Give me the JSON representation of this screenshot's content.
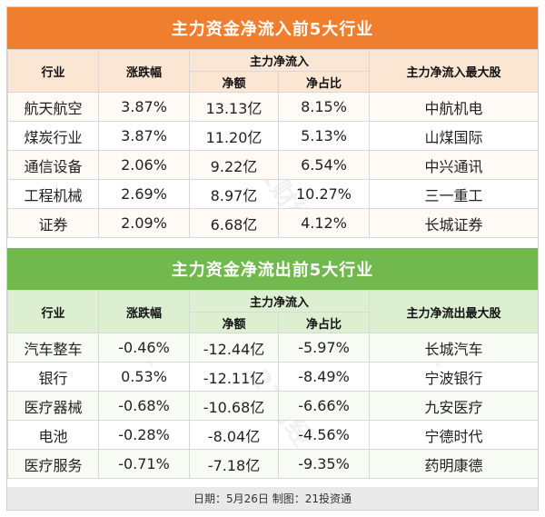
{
  "inflow": {
    "title": "主力资金净流入前5大行业",
    "headers": {
      "industry": "行业",
      "change": "涨跌幅",
      "net_group": "主力净流入",
      "net_amount": "净额",
      "net_ratio": "净占比",
      "top_stock": "主力净流入最大股"
    },
    "rows": [
      {
        "industry": "航天航空",
        "change": "3.87%",
        "amount": "13.13亿",
        "ratio": "8.15%",
        "stock": "中航机电"
      },
      {
        "industry": "煤炭行业",
        "change": "3.87%",
        "amount": "11.20亿",
        "ratio": "5.13%",
        "stock": "山煤国际"
      },
      {
        "industry": "通信设备",
        "change": "2.06%",
        "amount": "9.22亿",
        "ratio": "6.54%",
        "stock": "中兴通讯"
      },
      {
        "industry": "工程机械",
        "change": "2.69%",
        "amount": "8.97亿",
        "ratio": "10.27%",
        "stock": "三一重工"
      },
      {
        "industry": "证券",
        "change": "2.09%",
        "amount": "6.68亿",
        "ratio": "4.12%",
        "stock": "长城证券"
      }
    ]
  },
  "outflow": {
    "title": "主力资金净流出前5大行业",
    "headers": {
      "industry": "行业",
      "change": "涨跌幅",
      "net_group": "主力净流入",
      "net_amount": "净额",
      "net_ratio": "净占比",
      "top_stock": "主力净流出最大股"
    },
    "rows": [
      {
        "industry": "汽车整车",
        "change": "-0.46%",
        "amount": "-12.44亿",
        "ratio": "-5.97%",
        "stock": "长城汽车"
      },
      {
        "industry": "银行",
        "change": "0.53%",
        "amount": "-12.11亿",
        "ratio": "-8.49%",
        "stock": "宁波银行"
      },
      {
        "industry": "医疗器械",
        "change": "-0.68%",
        "amount": "-10.68亿",
        "ratio": "-6.66%",
        "stock": "九安医疗"
      },
      {
        "industry": "电池",
        "change": "-0.28%",
        "amount": "-8.04亿",
        "ratio": "-4.56%",
        "stock": "宁德时代"
      },
      {
        "industry": "医疗服务",
        "change": "-0.71%",
        "amount": "-7.18亿",
        "ratio": "-9.35%",
        "stock": "药明康德"
      }
    ]
  },
  "footer": "日期：5月26日  制图：21投资通",
  "colors": {
    "inflow_header": "#ef7f2e",
    "outflow_header": "#71b94c"
  }
}
